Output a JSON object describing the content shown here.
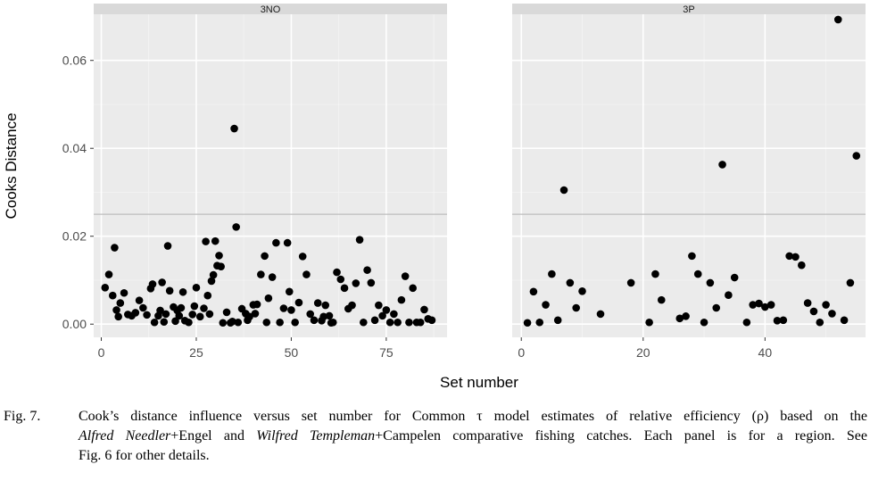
{
  "chart_data": {
    "type": "scatter",
    "ylabel": "Cooks Distance",
    "xlabel": "Set number",
    "ylim": [
      -0.003,
      0.0705
    ],
    "y_ticks": [
      0.0,
      0.02,
      0.04,
      0.06
    ],
    "y_tick_labels": [
      "0.00",
      "0.02",
      "0.04",
      "0.06"
    ],
    "reference_line_y": 0.025,
    "grid": true,
    "panels": [
      {
        "strip": "3NO",
        "xlim": [
          -2,
          91
        ],
        "x_ticks": [
          0,
          25,
          50,
          75
        ],
        "x_tick_labels": [
          "0",
          "25",
          "50",
          "75"
        ],
        "points": [
          [
            1,
            0.0083
          ],
          [
            2,
            0.0113
          ],
          [
            3,
            0.0065
          ],
          [
            3.5,
            0.0174
          ],
          [
            4,
            0.0032
          ],
          [
            4.5,
            0.0017
          ],
          [
            5,
            0.0048
          ],
          [
            6,
            0.0071
          ],
          [
            7,
            0.0022
          ],
          [
            8,
            0.0019
          ],
          [
            9,
            0.0026
          ],
          [
            10,
            0.0054
          ],
          [
            11,
            0.0037
          ],
          [
            12,
            0.0021
          ],
          [
            13,
            0.0081
          ],
          [
            13.5,
            0.0091
          ],
          [
            14,
            0.0004
          ],
          [
            15,
            0.0019
          ],
          [
            15.5,
            0.0031
          ],
          [
            16,
            0.0095
          ],
          [
            16.5,
            0.0005
          ],
          [
            17,
            0.0023
          ],
          [
            17.5,
            0.0178
          ],
          [
            18,
            0.0076
          ],
          [
            19,
            0.0039
          ],
          [
            19.5,
            0.0007
          ],
          [
            20,
            0.0031
          ],
          [
            20.5,
            0.0019
          ],
          [
            21,
            0.0037
          ],
          [
            21.5,
            0.0073
          ],
          [
            22,
            0.0008
          ],
          [
            23,
            0.0004
          ],
          [
            24,
            0.0022
          ],
          [
            24.5,
            0.0041
          ],
          [
            25,
            0.0083
          ],
          [
            26,
            0.0017
          ],
          [
            27,
            0.0036
          ],
          [
            27.5,
            0.0188
          ],
          [
            28,
            0.0065
          ],
          [
            28.5,
            0.0023
          ],
          [
            29,
            0.0098
          ],
          [
            29.5,
            0.0112
          ],
          [
            30,
            0.0189
          ],
          [
            30.5,
            0.0133
          ],
          [
            31,
            0.0156
          ],
          [
            31.5,
            0.0131
          ],
          [
            32,
            0.0003
          ],
          [
            33,
            0.0027
          ],
          [
            34,
            0.0003
          ],
          [
            34.5,
            0.0006
          ],
          [
            35,
            0.0445
          ],
          [
            35.5,
            0.0221
          ],
          [
            36,
            0.0004
          ],
          [
            37,
            0.0035
          ],
          [
            38,
            0.0024
          ],
          [
            38.5,
            0.0009
          ],
          [
            39,
            0.0017
          ],
          [
            40,
            0.0044
          ],
          [
            40.5,
            0.0024
          ],
          [
            41,
            0.0045
          ],
          [
            42,
            0.0113
          ],
          [
            43,
            0.0155
          ],
          [
            43.5,
            0.0004
          ],
          [
            44,
            0.0059
          ],
          [
            45,
            0.0107
          ],
          [
            46,
            0.0185
          ],
          [
            47,
            0.0004
          ],
          [
            48,
            0.0036
          ],
          [
            49,
            0.0185
          ],
          [
            49.5,
            0.0074
          ],
          [
            50,
            0.0032
          ],
          [
            51,
            0.0004
          ],
          [
            52,
            0.0049
          ],
          [
            53,
            0.0154
          ],
          [
            54,
            0.0113
          ],
          [
            55,
            0.0023
          ],
          [
            56,
            0.0009
          ],
          [
            57,
            0.0048
          ],
          [
            58,
            0.0008
          ],
          [
            58.5,
            0.0017
          ],
          [
            59,
            0.0043
          ],
          [
            60,
            0.0019
          ],
          [
            60.5,
            0.0003
          ],
          [
            61,
            0.0004
          ],
          [
            62,
            0.0118
          ],
          [
            63,
            0.0102
          ],
          [
            64,
            0.0082
          ],
          [
            65,
            0.0035
          ],
          [
            66,
            0.0043
          ],
          [
            67,
            0.0093
          ],
          [
            68,
            0.0192
          ],
          [
            69,
            0.0004
          ],
          [
            70,
            0.0123
          ],
          [
            71,
            0.0094
          ],
          [
            72,
            0.0009
          ],
          [
            73,
            0.0043
          ],
          [
            74,
            0.0019
          ],
          [
            75,
            0.0032
          ],
          [
            76,
            0.0004
          ],
          [
            77,
            0.0023
          ],
          [
            78,
            0.0004
          ],
          [
            79,
            0.0055
          ],
          [
            80,
            0.0109
          ],
          [
            81,
            0.0004
          ],
          [
            82,
            0.0082
          ],
          [
            83,
            0.0004
          ],
          [
            84,
            0.0004
          ],
          [
            85,
            0.0033
          ],
          [
            86,
            0.0012
          ],
          [
            87,
            0.0009
          ]
        ]
      },
      {
        "strip": "3P",
        "xlim": [
          -1.5,
          56.5
        ],
        "x_ticks": [
          0,
          20,
          40
        ],
        "x_tick_labels": [
          "0",
          "20",
          "40"
        ],
        "points": [
          [
            1,
            0.0003
          ],
          [
            2,
            0.0074
          ],
          [
            3,
            0.0004
          ],
          [
            4,
            0.0044
          ],
          [
            5,
            0.0114
          ],
          [
            6,
            0.0009
          ],
          [
            7,
            0.0305
          ],
          [
            8,
            0.0094
          ],
          [
            9,
            0.0037
          ],
          [
            10,
            0.0075
          ],
          [
            13,
            0.0023
          ],
          [
            18,
            0.0094
          ],
          [
            21,
            0.0004
          ],
          [
            22,
            0.0114
          ],
          [
            23,
            0.0055
          ],
          [
            26,
            0.0013
          ],
          [
            27,
            0.0018
          ],
          [
            28,
            0.0155
          ],
          [
            29,
            0.0114
          ],
          [
            30,
            0.0004
          ],
          [
            31,
            0.0094
          ],
          [
            32,
            0.0037
          ],
          [
            33,
            0.0363
          ],
          [
            34,
            0.0066
          ],
          [
            35,
            0.0106
          ],
          [
            37,
            0.0004
          ],
          [
            38,
            0.0044
          ],
          [
            39,
            0.0047
          ],
          [
            40,
            0.0039
          ],
          [
            41,
            0.0044
          ],
          [
            42,
            0.0008
          ],
          [
            43,
            0.0009
          ],
          [
            44,
            0.0155
          ],
          [
            45,
            0.0153
          ],
          [
            46,
            0.0134
          ],
          [
            47,
            0.0048
          ],
          [
            48,
            0.0029
          ],
          [
            49,
            0.0004
          ],
          [
            50,
            0.0044
          ],
          [
            51,
            0.0024
          ],
          [
            52,
            0.0693
          ],
          [
            53,
            0.0009
          ],
          [
            54,
            0.0094
          ],
          [
            55,
            0.0383
          ]
        ]
      }
    ]
  },
  "caption": {
    "label": "Fig. 7.",
    "line1": "Cook’s distance influence versus set number for Common τ model estimates of relative efficiency (ρ) based on the",
    "line2_italic_a": "Alfred Needler",
    "line2_text_a": "+Engel and ",
    "line2_italic_b": "Wilfred Templeman",
    "line2_text_b": "+Campelen comparative fishing catches. Each panel is for a region. See",
    "line3": "Fig. 6 for other details."
  }
}
